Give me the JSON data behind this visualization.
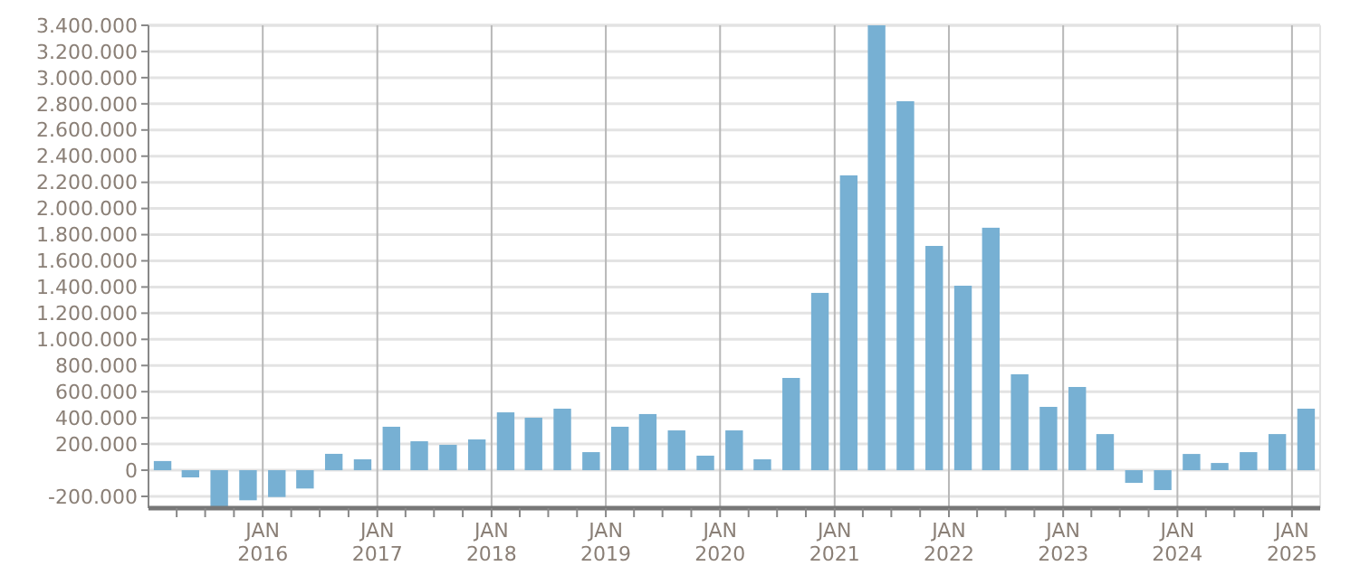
{
  "chart_data": {
    "type": "bar",
    "x": [
      "2015-02-15",
      "2015-05-15",
      "2015-08-15",
      "2015-11-15",
      "2016-02-15",
      "2016-05-15",
      "2016-08-15",
      "2016-11-15",
      "2017-02-15",
      "2017-05-15",
      "2017-08-15",
      "2017-11-15",
      "2018-02-15",
      "2018-05-15",
      "2018-08-15",
      "2018-11-15",
      "2019-02-15",
      "2019-05-15",
      "2019-08-15",
      "2019-11-15",
      "2020-02-15",
      "2020-05-15",
      "2020-08-15",
      "2020-11-15",
      "2021-02-15",
      "2021-05-15",
      "2021-08-15",
      "2021-11-15",
      "2022-02-15",
      "2022-05-15",
      "2022-08-15",
      "2022-11-15",
      "2023-02-15",
      "2023-05-15",
      "2023-08-15",
      "2023-11-15",
      "2024-02-15",
      "2024-05-15",
      "2024-08-15",
      "2024-11-15",
      "2025-02-15"
    ],
    "values": [
      70000,
      -55000,
      -280000,
      -230000,
      -205000,
      -140000,
      125000,
      83000,
      332000,
      221000,
      194000,
      235000,
      442000,
      401000,
      470000,
      138000,
      332000,
      429000,
      304000,
      111000,
      304000,
      83000,
      705000,
      1355000,
      2253000,
      3400000,
      2820000,
      1714000,
      1410000,
      1853000,
      733000,
      484000,
      636000,
      276000,
      -97000,
      -152000,
      124000,
      55000,
      138000,
      276000,
      470000
    ],
    "color": "#77b0d3",
    "xlim": [
      "2015-01-01",
      "2025-04-01"
    ],
    "xticks": [
      {
        "value": "2015-04-01",
        "label": null
      },
      {
        "value": "2015-07-01",
        "label": null
      },
      {
        "value": "2015-10-01",
        "label": null
      },
      {
        "value": "2016-01-01",
        "label": "JAN\n2016"
      },
      {
        "value": "2016-04-01",
        "label": null
      },
      {
        "value": "2016-07-01",
        "label": null
      },
      {
        "value": "2016-10-01",
        "label": null
      },
      {
        "value": "2017-01-01",
        "label": "JAN\n2017"
      },
      {
        "value": "2017-04-01",
        "label": null
      },
      {
        "value": "2017-07-01",
        "label": null
      },
      {
        "value": "2017-10-01",
        "label": null
      },
      {
        "value": "2018-01-01",
        "label": "JAN\n2018"
      },
      {
        "value": "2018-04-01",
        "label": null
      },
      {
        "value": "2018-07-01",
        "label": null
      },
      {
        "value": "2018-10-01",
        "label": null
      },
      {
        "value": "2019-01-01",
        "label": "JAN\n2019"
      },
      {
        "value": "2019-04-01",
        "label": null
      },
      {
        "value": "2019-07-01",
        "label": null
      },
      {
        "value": "2019-10-01",
        "label": null
      },
      {
        "value": "2020-01-01",
        "label": "JAN\n2020"
      },
      {
        "value": "2020-04-01",
        "label": null
      },
      {
        "value": "2020-07-01",
        "label": null
      },
      {
        "value": "2020-10-01",
        "label": null
      },
      {
        "value": "2021-01-01",
        "label": "JAN\n2021"
      },
      {
        "value": "2021-04-01",
        "label": null
      },
      {
        "value": "2021-07-01",
        "label": null
      },
      {
        "value": "2021-10-01",
        "label": null
      },
      {
        "value": "2022-01-01",
        "label": "JAN\n2022"
      },
      {
        "value": "2022-04-01",
        "label": null
      },
      {
        "value": "2022-07-01",
        "label": null
      },
      {
        "value": "2022-10-01",
        "label": null
      },
      {
        "value": "2023-01-01",
        "label": "JAN\n2023"
      },
      {
        "value": "2023-04-01",
        "label": null
      },
      {
        "value": "2023-07-01",
        "label": null
      },
      {
        "value": "2023-10-01",
        "label": null
      },
      {
        "value": "2024-01-01",
        "label": "JAN\n2024"
      },
      {
        "value": "2024-04-01",
        "label": null
      },
      {
        "value": "2024-07-01",
        "label": null
      },
      {
        "value": "2024-10-01",
        "label": null
      },
      {
        "value": "2025-01-01",
        "label": "JAN\n2025"
      }
    ],
    "ylim": [
      -290000,
      3400000
    ],
    "yticks": [
      {
        "value": -200000,
        "label": "-200.000"
      },
      0,
      {
        "value": 200000,
        "label": "200.000"
      },
      {
        "value": 400000,
        "label": "400.000"
      },
      {
        "value": 600000,
        "label": "600.000"
      },
      {
        "value": 800000,
        "label": "800.000"
      },
      {
        "value": 1000000,
        "label": "1.000.000"
      },
      {
        "value": 1200000,
        "label": "1.200.000"
      },
      {
        "value": 1400000,
        "label": "1.400.000"
      },
      {
        "value": 1600000,
        "label": "1.600.000"
      },
      {
        "value": 1800000,
        "label": "1.800.000"
      },
      {
        "value": 2000000,
        "label": "2.000.000"
      },
      {
        "value": 2200000,
        "label": "2.200.000"
      },
      {
        "value": 2400000,
        "label": "2.400.000"
      },
      {
        "value": 2600000,
        "label": "2.600.000"
      },
      {
        "value": 2800000,
        "label": "2.800.000"
      },
      {
        "value": 3000000,
        "label": "3.000.000"
      },
      {
        "value": 3200000,
        "label": "3.200.000"
      },
      {
        "value": 3400000,
        "label": "3.400.000"
      }
    ],
    "grid": true
  }
}
